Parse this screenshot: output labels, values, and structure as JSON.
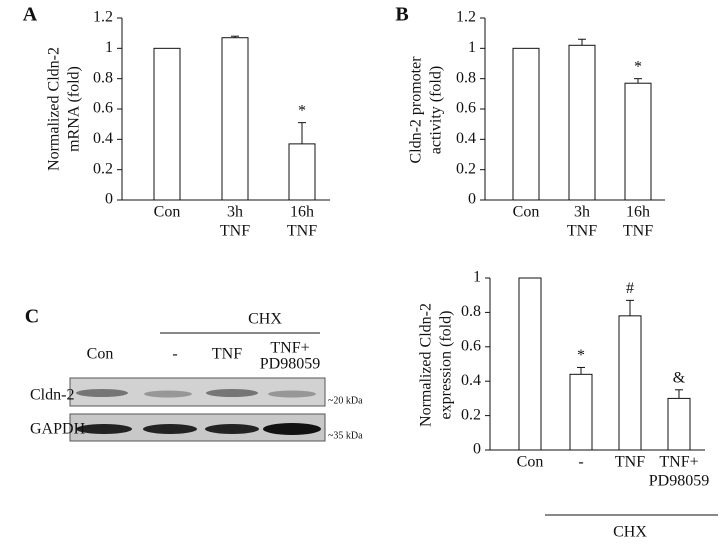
{
  "panels": {
    "a": "A",
    "b": "B",
    "c": "C"
  },
  "blot": {
    "group_label": "CHX",
    "lanes": [
      [
        "Con"
      ],
      [
        "-"
      ],
      [
        "TNF"
      ],
      [
        "TNF+",
        "PD98059"
      ]
    ],
    "rows": [
      "Cldn-2",
      "GAPDH"
    ],
    "sizes": [
      "~20 kDa",
      "~35 kDa"
    ]
  },
  "chart_data": [
    {
      "type": "bar",
      "y_label": [
        "Normalized Cldn-2",
        "mRNA (fold)"
      ],
      "categories": [
        [
          "Con"
        ],
        [
          "3h",
          "TNF"
        ],
        [
          "16h",
          "TNF"
        ]
      ],
      "values": [
        1.0,
        1.07,
        0.37
      ],
      "errors": [
        null,
        0.01,
        0.14
      ],
      "markers": [
        null,
        null,
        "*"
      ],
      "color": "#ffffff",
      "ylim": [
        0,
        1.2
      ],
      "yticks": [
        0,
        0.2,
        0.4,
        0.6,
        0.8,
        1,
        1.2
      ]
    },
    {
      "type": "bar",
      "y_label": [
        "Cldn-2 promoter",
        "activity (fold)"
      ],
      "categories": [
        [
          "Con"
        ],
        [
          "3h",
          "TNF"
        ],
        [
          "16h",
          "TNF"
        ]
      ],
      "values": [
        1.0,
        1.02,
        0.77
      ],
      "errors": [
        null,
        0.04,
        0.03
      ],
      "markers": [
        null,
        null,
        "*"
      ],
      "color": "#ffffff",
      "ylim": [
        0,
        1.2
      ],
      "yticks": [
        0,
        0.2,
        0.4,
        0.6,
        0.8,
        1,
        1.2
      ]
    },
    {
      "type": "bar",
      "y_label": [
        "Normalized Cldn-2",
        "expression  (fold)"
      ],
      "categories": [
        [
          "Con"
        ],
        [
          "-"
        ],
        [
          "TNF"
        ],
        [
          "TNF+",
          "PD98059"
        ]
      ],
      "values": [
        1.0,
        0.44,
        0.78,
        0.3
      ],
      "errors": [
        null,
        0.04,
        0.09,
        0.05
      ],
      "markers": [
        null,
        "*",
        "#",
        "&"
      ],
      "color": "#ffffff",
      "group_label": "CHX",
      "ylim": [
        0,
        1
      ],
      "yticks": [
        0,
        0.2,
        0.4,
        0.6,
        0.8,
        1
      ]
    }
  ]
}
